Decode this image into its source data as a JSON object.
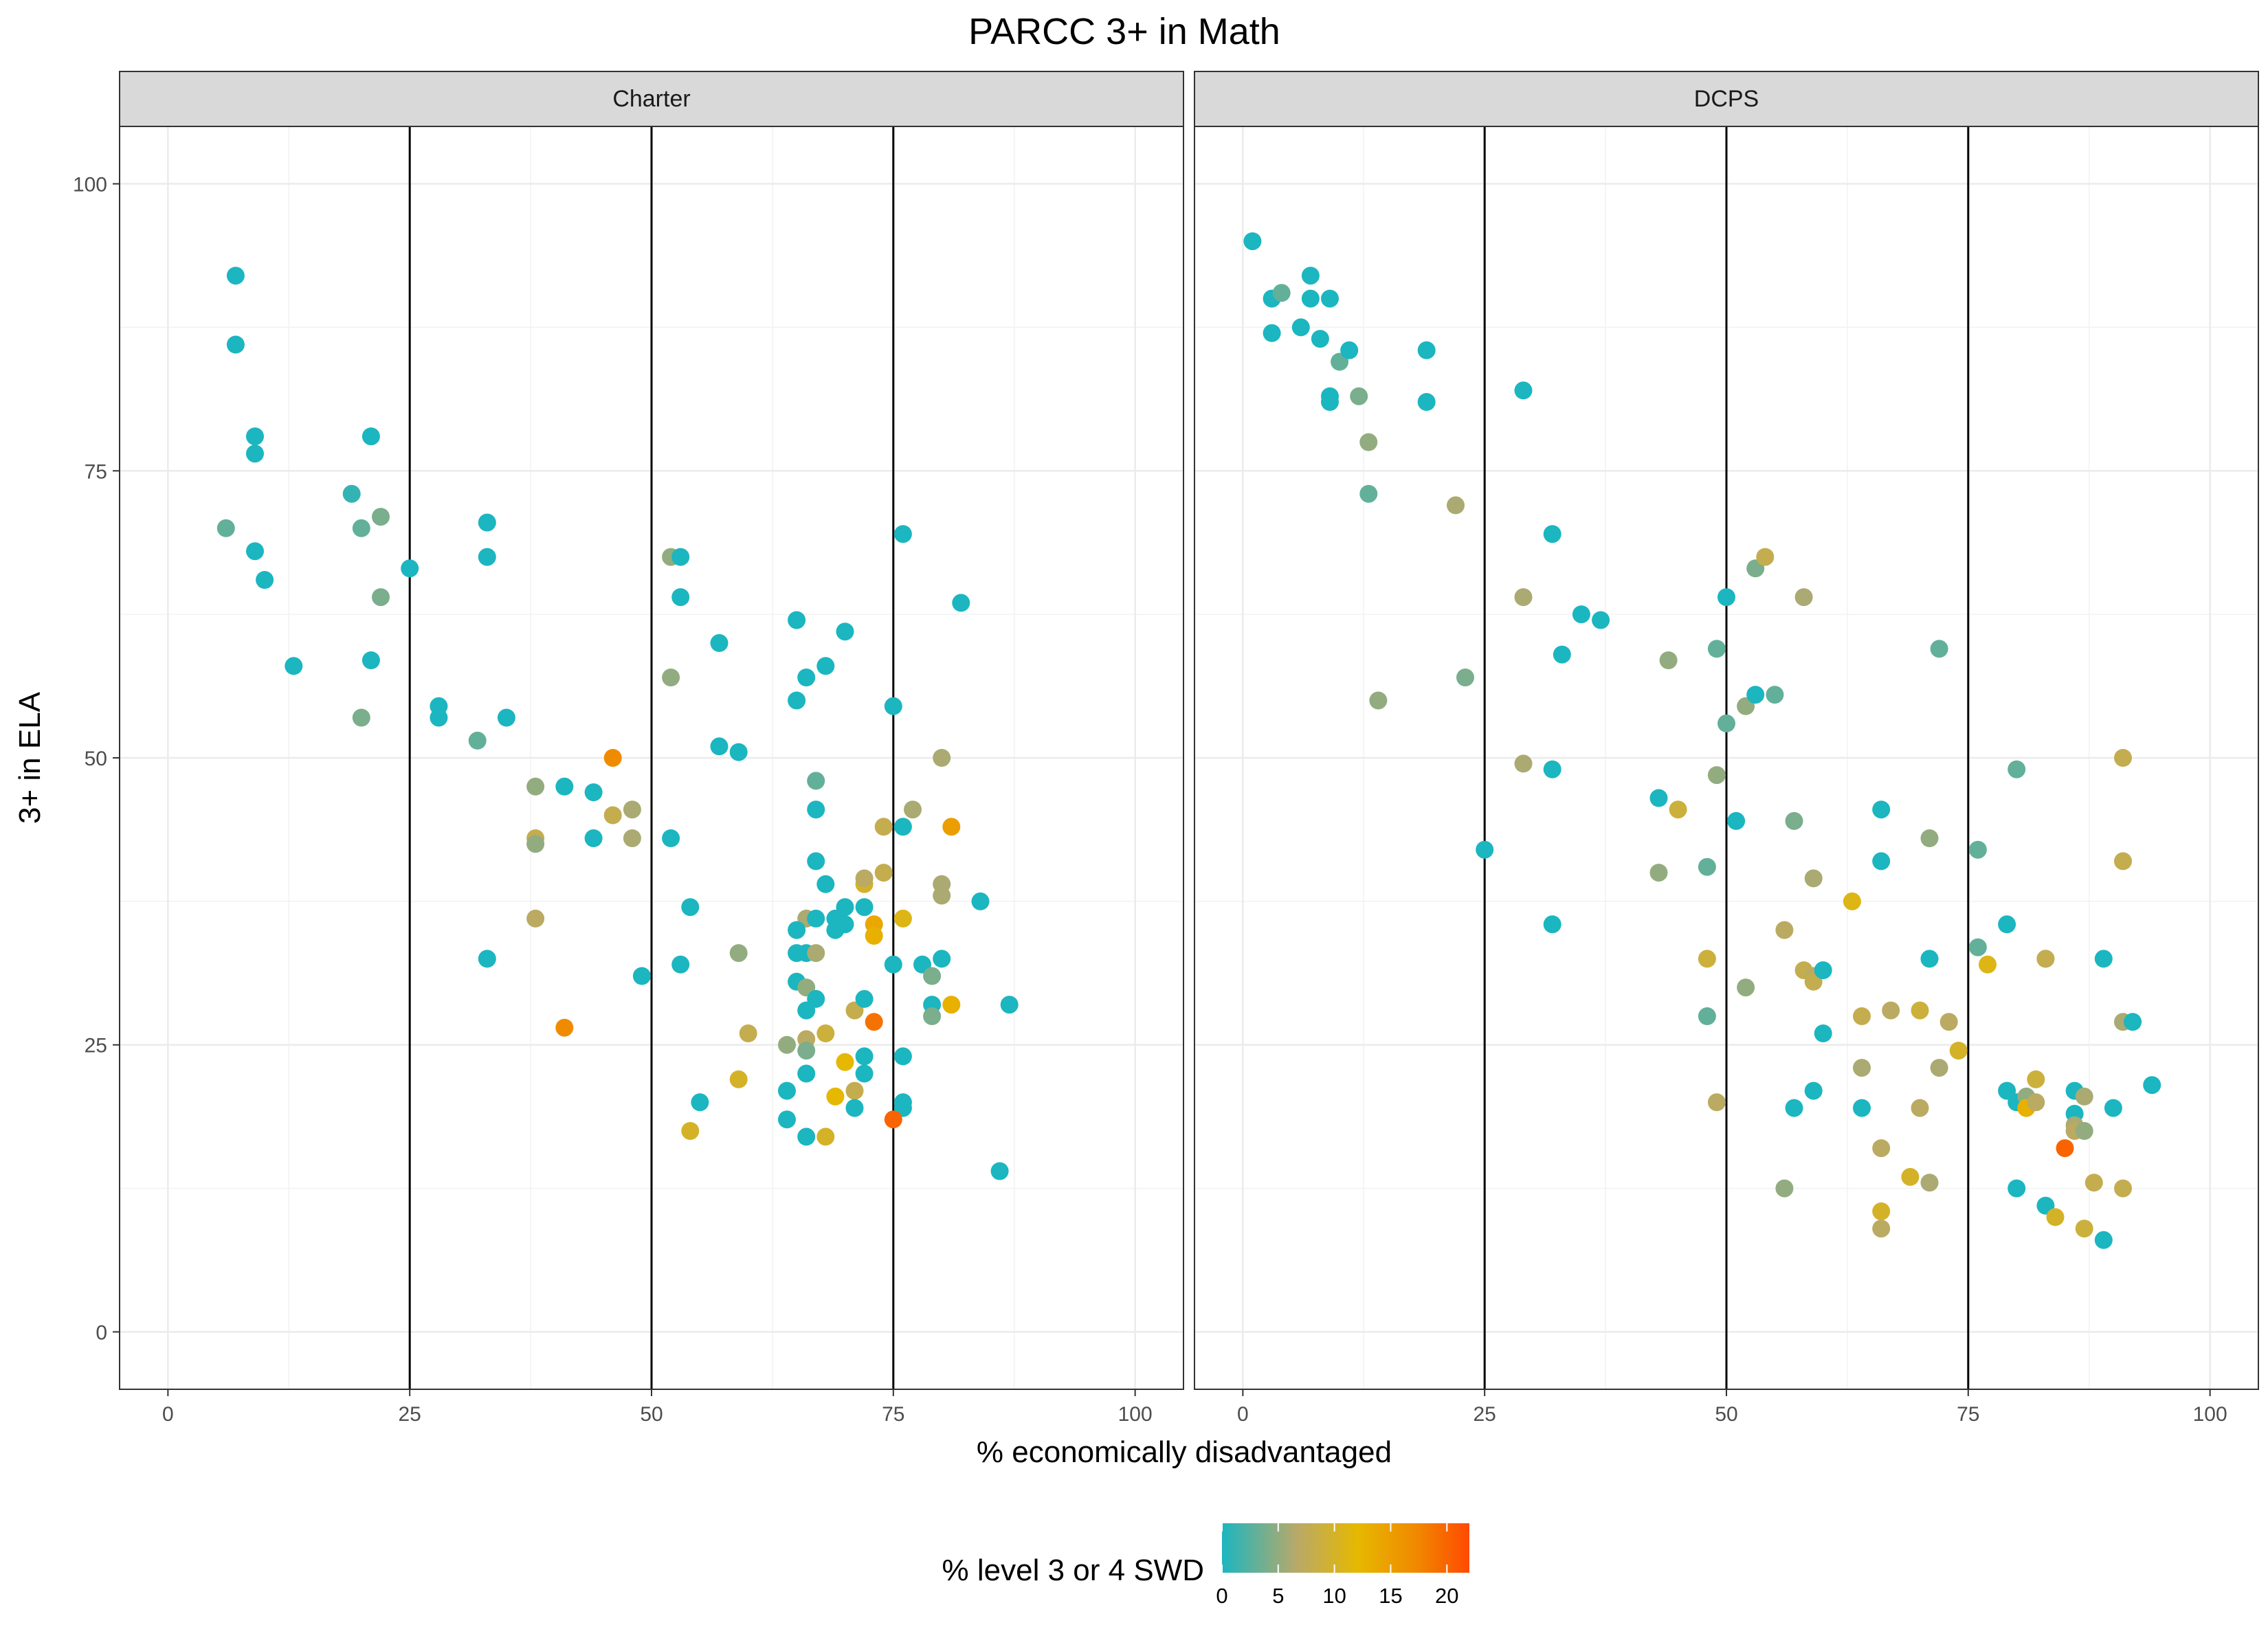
{
  "chart_data": {
    "type": "scatter",
    "title": "PARCC 3+ in Math",
    "xlabel": "% economically disadvantaged",
    "ylabel": "3+ in ELA",
    "xlim": [
      -5,
      105
    ],
    "ylim": [
      -5,
      105
    ],
    "x_ticks": [
      0,
      25,
      50,
      75,
      100
    ],
    "y_ticks": [
      0,
      25,
      50,
      75,
      100
    ],
    "x_tick_labels": [
      "0",
      "25",
      "50",
      "75",
      "100"
    ],
    "y_tick_labels": [
      "0",
      "25",
      "50",
      "75",
      "100"
    ],
    "vlines": [
      25,
      50,
      75
    ],
    "grid": true,
    "legend": {
      "title": "% level 3 or 4 SWD",
      "position": "bottom",
      "min": 0,
      "max": 22,
      "ticks": [
        0,
        5,
        10,
        15,
        20
      ],
      "tick_labels": [
        "0",
        "5",
        "10",
        "15",
        "20"
      ],
      "colors": [
        "#1bb6c0",
        "#b8a96a",
        "#e6b800",
        "#f08a00",
        "#ff4a00"
      ],
      "color_stops": [
        0,
        0.3,
        0.55,
        0.78,
        1
      ]
    },
    "panels": [
      {
        "name": "Charter",
        "points": [
          [
            7,
            92,
            0
          ],
          [
            7,
            86,
            0
          ],
          [
            9,
            78,
            0
          ],
          [
            9,
            76.5,
            0
          ],
          [
            6,
            70,
            3
          ],
          [
            9,
            68,
            0
          ],
          [
            10,
            65.5,
            0
          ],
          [
            13,
            58,
            0
          ],
          [
            19,
            73,
            1
          ],
          [
            20,
            70,
            3
          ],
          [
            22,
            71,
            4
          ],
          [
            21,
            78,
            0
          ],
          [
            22,
            64,
            4
          ],
          [
            21,
            58.5,
            0
          ],
          [
            20,
            53.5,
            4
          ],
          [
            25,
            66.5,
            0
          ],
          [
            28,
            54.5,
            0
          ],
          [
            28,
            53.5,
            0
          ],
          [
            32,
            51.5,
            3
          ],
          [
            33,
            70.5,
            0
          ],
          [
            33,
            67.5,
            0
          ],
          [
            35,
            53.5,
            0
          ],
          [
            33,
            32.5,
            0
          ],
          [
            38,
            47.5,
            5
          ],
          [
            38,
            43,
            8
          ],
          [
            38,
            42.5,
            5
          ],
          [
            38,
            36,
            7
          ],
          [
            41,
            47.5,
            0
          ],
          [
            41,
            26.5,
            17
          ],
          [
            44,
            47,
            0
          ],
          [
            44,
            43,
            0
          ],
          [
            46,
            50,
            17
          ],
          [
            46,
            45,
            8
          ],
          [
            48,
            45.5,
            6
          ],
          [
            48,
            43,
            6
          ],
          [
            49,
            31,
            0
          ],
          [
            52,
            67.5,
            5
          ],
          [
            53,
            67.5,
            0
          ],
          [
            53,
            64,
            0
          ],
          [
            52,
            57,
            5
          ],
          [
            52,
            43,
            0
          ],
          [
            54,
            37,
            0
          ],
          [
            53,
            32,
            0
          ],
          [
            54,
            17.5,
            10
          ],
          [
            55,
            20,
            0
          ],
          [
            57,
            60,
            0
          ],
          [
            57,
            51,
            0
          ],
          [
            59,
            50.5,
            0
          ],
          [
            59,
            33,
            5
          ],
          [
            59,
            22,
            10
          ],
          [
            60,
            26,
            8
          ],
          [
            65,
            62,
            0
          ],
          [
            66,
            57,
            0
          ],
          [
            65,
            55,
            0
          ],
          [
            68,
            58,
            0
          ],
          [
            70,
            61,
            0
          ],
          [
            67,
            48,
            3
          ],
          [
            67,
            45.5,
            0
          ],
          [
            67,
            41,
            0
          ],
          [
            68,
            39,
            0
          ],
          [
            66,
            36,
            6
          ],
          [
            65,
            35,
            0
          ],
          [
            67,
            36,
            0
          ],
          [
            69,
            35,
            0
          ],
          [
            70,
            37,
            0
          ],
          [
            69,
            36,
            0
          ],
          [
            70,
            35.5,
            0
          ],
          [
            65,
            33,
            0
          ],
          [
            66,
            33,
            0
          ],
          [
            67,
            33,
            6
          ],
          [
            65,
            30.5,
            0
          ],
          [
            66,
            30,
            5
          ],
          [
            66,
            28,
            0
          ],
          [
            67,
            29,
            0
          ],
          [
            68,
            26,
            9
          ],
          [
            66,
            25.5,
            7
          ],
          [
            66,
            24.5,
            4
          ],
          [
            64,
            25,
            5
          ],
          [
            66,
            22.5,
            0
          ],
          [
            64,
            21,
            0
          ],
          [
            64,
            18.5,
            0
          ],
          [
            66,
            17,
            0
          ],
          [
            68,
            17,
            10
          ],
          [
            69,
            20.5,
            12
          ],
          [
            70,
            23.5,
            12
          ],
          [
            71,
            28,
            8
          ],
          [
            71,
            21,
            8
          ],
          [
            71,
            19.5,
            0
          ],
          [
            72,
            29,
            0
          ],
          [
            72,
            24,
            0
          ],
          [
            72,
            22.5,
            0
          ],
          [
            72,
            39,
            10
          ],
          [
            72,
            39.5,
            7
          ],
          [
            72,
            37,
            0
          ],
          [
            73,
            35.5,
            14
          ],
          [
            73,
            34.5,
            13
          ],
          [
            73,
            27,
            19
          ],
          [
            74,
            40,
            8
          ],
          [
            74,
            44,
            8
          ],
          [
            75,
            54.5,
            0
          ],
          [
            76,
            69.5,
            0
          ],
          [
            76,
            44,
            0
          ],
          [
            76,
            36,
            11
          ],
          [
            75,
            32,
            0
          ],
          [
            76,
            20,
            0
          ],
          [
            76,
            19.5,
            0
          ],
          [
            76,
            24,
            0
          ],
          [
            75,
            18.5,
            20
          ],
          [
            77,
            45.5,
            6
          ],
          [
            78,
            32,
            0
          ],
          [
            79,
            28.5,
            0
          ],
          [
            79,
            31,
            4
          ],
          [
            79,
            27.5,
            4
          ],
          [
            80,
            39,
            6
          ],
          [
            80,
            38,
            6
          ],
          [
            80,
            50,
            6
          ],
          [
            80,
            32.5,
            0
          ],
          [
            81,
            44,
            15
          ],
          [
            81,
            28.5,
            13
          ],
          [
            82,
            63.5,
            0
          ],
          [
            84,
            37.5,
            0
          ],
          [
            87,
            28.5,
            0
          ],
          [
            86,
            14,
            0
          ]
        ]
      },
      {
        "name": "DCPS",
        "points": [
          [
            1,
            95,
            0
          ],
          [
            3,
            90,
            0
          ],
          [
            4,
            90.5,
            3
          ],
          [
            3,
            87,
            0
          ],
          [
            6,
            87.5,
            0
          ],
          [
            7,
            92,
            0
          ],
          [
            7,
            90,
            0
          ],
          [
            8,
            86.5,
            0
          ],
          [
            9,
            90,
            0
          ],
          [
            9,
            81.5,
            0
          ],
          [
            9,
            81,
            0
          ],
          [
            10,
            84.5,
            3
          ],
          [
            11,
            85.5,
            0
          ],
          [
            12,
            81.5,
            4
          ],
          [
            13,
            77.5,
            5
          ],
          [
            13,
            73,
            3
          ],
          [
            14,
            55,
            5
          ],
          [
            19,
            85.5,
            0
          ],
          [
            19,
            81,
            0
          ],
          [
            22,
            72,
            6
          ],
          [
            23,
            57,
            4
          ],
          [
            25,
            42,
            0
          ],
          [
            29,
            82,
            0
          ],
          [
            29,
            64,
            6
          ],
          [
            29,
            49.5,
            6
          ],
          [
            32,
            69.5,
            0
          ],
          [
            32,
            49,
            0
          ],
          [
            32,
            35.5,
            0
          ],
          [
            33,
            59,
            0
          ],
          [
            35,
            62.5,
            0
          ],
          [
            37,
            62,
            0
          ],
          [
            43,
            46.5,
            0
          ],
          [
            43,
            40,
            5
          ],
          [
            44,
            58.5,
            5
          ],
          [
            45,
            45.5,
            9
          ],
          [
            48,
            40.5,
            3
          ],
          [
            48,
            32.5,
            9
          ],
          [
            48,
            27.5,
            3
          ],
          [
            49,
            59.5,
            3
          ],
          [
            49,
            48.5,
            5
          ],
          [
            49,
            20,
            7
          ],
          [
            50,
            64,
            0
          ],
          [
            50,
            53,
            3
          ],
          [
            51,
            44.5,
            0
          ],
          [
            52,
            54.5,
            5
          ],
          [
            52,
            30,
            5
          ],
          [
            53,
            66.5,
            4
          ],
          [
            53,
            55.5,
            0
          ],
          [
            54,
            67.5,
            8
          ],
          [
            55,
            55.5,
            3
          ],
          [
            56,
            35,
            7
          ],
          [
            56,
            12.5,
            5
          ],
          [
            57,
            44.5,
            4
          ],
          [
            58,
            64,
            6
          ],
          [
            57,
            19.5,
            0
          ],
          [
            58,
            31.5,
            8
          ],
          [
            59,
            31,
            7
          ],
          [
            59,
            30.5,
            8
          ],
          [
            59,
            39.5,
            6
          ],
          [
            60,
            31.5,
            0
          ],
          [
            60,
            26,
            0
          ],
          [
            59,
            21,
            0
          ],
          [
            63,
            37.5,
            11
          ],
          [
            64,
            27.5,
            8
          ],
          [
            64,
            19.5,
            0
          ],
          [
            64,
            23,
            6
          ],
          [
            66,
            45.5,
            0
          ],
          [
            66,
            41,
            0
          ],
          [
            66,
            16,
            7
          ],
          [
            66,
            10.5,
            10
          ],
          [
            66,
            9,
            7
          ],
          [
            67,
            28,
            7
          ],
          [
            69,
            13.5,
            10
          ],
          [
            70,
            28,
            9
          ],
          [
            70,
            19.5,
            7
          ],
          [
            71,
            43,
            5
          ],
          [
            71,
            32.5,
            0
          ],
          [
            71,
            13,
            6
          ],
          [
            72,
            59.5,
            3
          ],
          [
            72,
            23,
            6
          ],
          [
            73,
            27,
            7
          ],
          [
            74,
            24.5,
            10
          ],
          [
            76,
            42,
            3
          ],
          [
            76,
            33.5,
            3
          ],
          [
            77,
            32,
            11
          ],
          [
            79,
            35.5,
            0
          ],
          [
            80,
            49,
            3
          ],
          [
            80,
            12.5,
            0
          ],
          [
            79,
            21,
            0
          ],
          [
            80,
            20,
            0
          ],
          [
            81,
            20.5,
            5
          ],
          [
            81,
            19.5,
            13
          ],
          [
            82,
            22,
            9
          ],
          [
            82,
            20,
            7
          ],
          [
            83,
            32.5,
            6
          ],
          [
            83,
            32.5,
            8
          ],
          [
            83,
            11,
            0
          ],
          [
            84,
            10,
            10
          ],
          [
            85,
            16,
            20
          ],
          [
            86,
            21,
            0
          ],
          [
            86,
            19,
            0
          ],
          [
            86,
            18,
            6
          ],
          [
            86,
            17.5,
            7
          ],
          [
            87,
            20.5,
            6
          ],
          [
            87,
            17.5,
            5
          ],
          [
            87,
            9,
            9
          ],
          [
            88,
            13,
            8
          ],
          [
            89,
            8,
            0
          ],
          [
            89,
            32.5,
            0
          ],
          [
            90,
            19.5,
            0
          ],
          [
            91,
            50,
            8
          ],
          [
            91,
            41,
            8
          ],
          [
            91,
            12.5,
            8
          ],
          [
            91,
            27,
            6
          ],
          [
            92,
            27,
            0
          ],
          [
            94,
            21.5,
            0
          ]
        ]
      }
    ]
  }
}
